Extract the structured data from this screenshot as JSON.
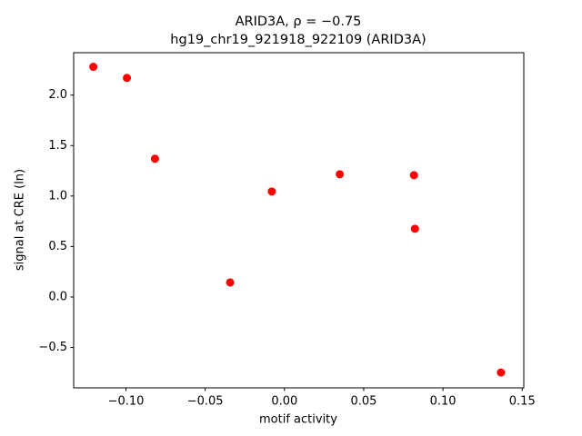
{
  "chart_data": {
    "type": "scatter",
    "title": "ARID3A, ρ = −0.75",
    "subtitle": "hg19_chr19_921918_922109 (ARID3A)",
    "x_label": "motif activity",
    "y_label": "signal at CRE (ln)",
    "color": "#ff0000",
    "x": [
      -0.1206,
      -0.0994,
      -0.0817,
      -0.0343,
      -0.008,
      0.0349,
      0.0817,
      0.0823,
      0.1366
    ],
    "values": [
      2.28,
      2.17,
      1.37,
      0.144,
      1.045,
      1.216,
      1.207,
      0.676,
      -0.748
    ],
    "xlim": [
      -0.133,
      0.151
    ],
    "ylim": [
      -0.9,
      2.42
    ],
    "xticks": [
      {
        "value": -0.1,
        "label": "−0.10"
      },
      {
        "value": -0.05,
        "label": "−0.05"
      },
      {
        "value": 0,
        "label": "0.00"
      },
      {
        "value": 0.05,
        "label": "0.05"
      },
      {
        "value": 0.1,
        "label": "0.10"
      },
      {
        "value": 0.15,
        "label": "0.15"
      }
    ],
    "yticks": [
      {
        "value": -0.5,
        "label": "−0.5"
      },
      {
        "value": 0,
        "label": "0.0"
      },
      0.5,
      {
        "value": 1,
        "label": "1.0"
      },
      1.5,
      {
        "value": 2,
        "label": "2.0"
      }
    ],
    "grid": false
  }
}
